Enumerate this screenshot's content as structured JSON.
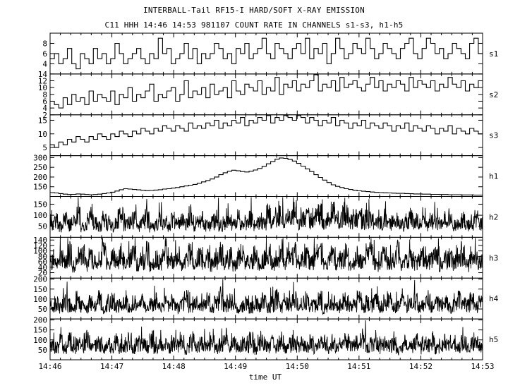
{
  "header": {
    "title": "INTERBALL-Tail RF15-I HARD/SOFT X-RAY EMISSION",
    "subtitle": "C11 HHH 14:46 14:53 981107  COUNT RATE IN CHANNELS s1-s3, h1-h5"
  },
  "chart_data": {
    "type": "line",
    "title": "INTERBALL-Tail RF15-I HARD/SOFT X-RAY EMISSION",
    "subtitle": "C11 HHH 14:46 14:53 981107  COUNT RATE IN CHANNELS s1-s3, h1-h5",
    "xlabel": "time UT",
    "x_ticks": [
      "14:46",
      "14:47",
      "14:48",
      "14:49",
      "14:50",
      "14:51",
      "14:52",
      "14:53"
    ],
    "x_range": [
      "14:46",
      "14:53"
    ],
    "grid": false,
    "panels": [
      {
        "name": "s1",
        "ylim": [
          2,
          10
        ],
        "yticks": [
          4,
          6,
          8
        ],
        "step": true,
        "values": [
          5,
          6,
          4,
          5,
          7,
          4,
          3,
          6,
          5,
          4,
          7,
          5,
          6,
          4,
          5,
          8,
          6,
          4,
          5,
          6,
          7,
          5,
          4,
          6,
          5,
          9,
          6,
          7,
          4,
          5,
          6,
          8,
          5,
          7,
          4,
          6,
          5,
          6,
          8,
          7,
          5,
          6,
          4,
          7,
          6,
          8,
          5,
          6,
          7,
          9,
          6,
          5,
          8,
          7,
          6,
          5,
          7,
          8,
          6,
          9,
          5,
          7,
          6,
          8,
          4,
          6,
          9,
          7,
          5,
          6,
          8,
          7,
          6,
          9,
          7,
          5,
          6,
          8,
          7,
          6,
          5,
          7,
          8,
          9,
          6,
          5,
          7,
          9,
          8,
          6,
          7,
          5,
          6,
          8,
          7,
          6,
          5,
          8,
          9,
          6
        ]
      },
      {
        "name": "s2",
        "ylim": [
          2,
          14
        ],
        "yticks": [
          2,
          4,
          6,
          8,
          10,
          12,
          14
        ],
        "step": true,
        "values": [
          6,
          5,
          4,
          7,
          5,
          8,
          6,
          7,
          5,
          9,
          6,
          8,
          7,
          6,
          9,
          5,
          8,
          7,
          10,
          6,
          8,
          7,
          9,
          11,
          6,
          8,
          7,
          9,
          10,
          6,
          8,
          12,
          7,
          9,
          8,
          10,
          7,
          11,
          8,
          9,
          10,
          7,
          12,
          9,
          8,
          11,
          10,
          9,
          12,
          8,
          10,
          9,
          13,
          8,
          11,
          10,
          12,
          9,
          11,
          10,
          12,
          14,
          9,
          11,
          10,
          12,
          9,
          13,
          10,
          11,
          12,
          10,
          9,
          11,
          13,
          10,
          12,
          9,
          11,
          10,
          12,
          11,
          9,
          13,
          10,
          12,
          11,
          10,
          12,
          9,
          11,
          10,
          13,
          11,
          10,
          12,
          9,
          11,
          10,
          12
        ]
      },
      {
        "name": "s3",
        "ylim": [
          2,
          17
        ],
        "yticks": [
          5,
          10,
          15
        ],
        "step": true,
        "values": [
          6,
          5,
          7,
          6,
          8,
          7,
          9,
          8,
          7,
          9,
          8,
          10,
          9,
          8,
          10,
          9,
          11,
          10,
          9,
          11,
          10,
          12,
          11,
          10,
          12,
          11,
          13,
          12,
          11,
          13,
          12,
          11,
          14,
          12,
          13,
          12,
          14,
          13,
          15,
          12,
          14,
          13,
          15,
          14,
          16,
          13,
          15,
          14,
          16,
          15,
          17,
          14,
          16,
          15,
          17,
          16,
          15,
          17,
          16,
          14,
          16,
          15,
          13,
          15,
          14,
          16,
          13,
          15,
          14,
          12,
          14,
          13,
          15,
          12,
          14,
          13,
          12,
          14,
          13,
          11,
          13,
          12,
          14,
          11,
          13,
          12,
          11,
          13,
          12,
          10,
          12,
          11,
          13,
          10,
          12,
          11,
          10,
          12,
          11,
          10
        ]
      },
      {
        "name": "h1",
        "ylim": [
          100,
          310
        ],
        "yticks": [
          150,
          200,
          250,
          300
        ],
        "step": true,
        "values": [
          120,
          118,
          115,
          112,
          110,
          111,
          113,
          112,
          110,
          109,
          110,
          112,
          115,
          118,
          122,
          128,
          135,
          140,
          138,
          136,
          134,
          132,
          130,
          131,
          133,
          135,
          138,
          140,
          143,
          146,
          150,
          154,
          158,
          162,
          168,
          175,
          182,
          190,
          200,
          212,
          222,
          230,
          235,
          232,
          228,
          226,
          230,
          236,
          244,
          255,
          268,
          280,
          292,
          298,
          296,
          290,
          282,
          270,
          256,
          242,
          228,
          212,
          198,
          184,
          172,
          160,
          152,
          146,
          140,
          136,
          132,
          129,
          127,
          125,
          123,
          121,
          120,
          119,
          118,
          117,
          116,
          116,
          115,
          114,
          113,
          113,
          112,
          112,
          111,
          111,
          110,
          110,
          109,
          109,
          109,
          108,
          108,
          108,
          107,
          107
        ]
      },
      {
        "name": "h2",
        "ylim": [
          0,
          185
        ],
        "yticks": [
          50,
          100,
          150
        ],
        "values": [
          60,
          72,
          48,
          81,
          55,
          67,
          90,
          43,
          58,
          77,
          64,
          52,
          85,
          61,
          47,
          70,
          94,
          56,
          63,
          79,
          50,
          68,
          88,
          45,
          59,
          74,
          66,
          53,
          82,
          60,
          71,
          57,
          97,
          49,
          65,
          78,
          54,
          69,
          91,
          46,
          62,
          75,
          58,
          83,
          51,
          67,
          86,
          55,
          73,
          60,
          108,
          64,
          78,
          99,
          70,
          85,
          112,
          66,
          80,
          95,
          74,
          89,
          104,
          69,
          82,
          120,
          77,
          91,
          100,
          72,
          87,
          94,
          68,
          81,
          76,
          63,
          70,
          88,
          59,
          66,
          79,
          55,
          72,
          84,
          61,
          68,
          90,
          57,
          74,
          65,
          53,
          71,
          86,
          60,
          67,
          78,
          56,
          63,
          82,
          58
        ]
      },
      {
        "name": "h3",
        "ylim": [
          0,
          150
        ],
        "yticks": [
          20,
          40,
          60,
          80,
          100,
          120,
          140
        ],
        "values": [
          62,
          48,
          75,
          55,
          90,
          43,
          68,
          80,
          52,
          71,
          58,
          66,
          95,
          47,
          73,
          60,
          84,
          54,
          69,
          77,
          50,
          64,
          88,
          45,
          70,
          59,
          82,
          53,
          67,
          76,
          49,
          63,
          91,
          56,
          72,
          61,
          79,
          51,
          65,
          86,
          57,
          74,
          48,
          68,
          83,
          55,
          62,
          78,
          50,
          71,
          89,
          58,
          66,
          80,
          53,
          69,
          92,
          47,
          64,
          75,
          56,
          73,
          85,
          52,
          67,
          79,
          60,
          70,
          88,
          49,
          63,
          77,
          55,
          72,
          84,
          51,
          66,
          81,
          58,
          69,
          93,
          46,
          62,
          76,
          54,
          71,
          86,
          59,
          65,
          78,
          50,
          68,
          82,
          57,
          73,
          90,
          48,
          64,
          75,
          61
        ]
      },
      {
        "name": "h4",
        "ylim": [
          0,
          205
        ],
        "yticks": [
          50,
          100,
          150,
          200
        ],
        "values": [
          62,
          75,
          55,
          88,
          68,
          50,
          92,
          70,
          58,
          80,
          66,
          95,
          53,
          74,
          86,
          61,
          70,
          99,
          57,
          78,
          64,
          83,
          52,
          71,
          90,
          60,
          76,
          67,
          85,
          54,
          73,
          96,
          63,
          80,
          58,
          69,
          88,
          55,
          77,
          92,
          65,
          72,
          84,
          51,
          68,
          94,
          60,
          79,
          70,
          87,
          56,
          74,
          98,
          62,
          81,
          67,
          90,
          58,
          76,
          85,
          64,
          71,
          93,
          53,
          69,
          82,
          60,
          78,
          89,
          66,
          73,
          95,
          57,
          80,
          70,
          86,
          61,
          75,
          91,
          55,
          68,
          83,
          63,
          77,
          94,
          59,
          72,
          88,
          65,
          79,
          71,
          84,
          56,
          74,
          96,
          62,
          70,
          85,
          58,
          76
        ]
      },
      {
        "name": "h5",
        "ylim": [
          0,
          205
        ],
        "yticks": [
          50,
          100,
          150,
          200
        ],
        "values": [
          70,
          58,
          85,
          64,
          92,
          55,
          78,
          68,
          98,
          60,
          74,
          86,
          57,
          80,
          66,
          94,
          62,
          77,
          89,
          54,
          72,
          83,
          65,
          96,
          59,
          76,
          88,
          63,
          81,
          70,
          93,
          56,
          75,
          87,
          61,
          79,
          67,
          95,
          58,
          73,
          84,
          64,
          90,
          60,
          78,
          71,
          97,
          55,
          76,
          86,
          63,
          82,
          69,
          92,
          57,
          74,
          88,
          66,
          80,
          62,
          95,
          59,
          77,
          85,
          68,
          91,
          56,
          73,
          89,
          64,
          79,
          70,
          96,
          58,
          75,
          83,
          61,
          87,
          67,
          93,
          55,
          72,
          84,
          63,
          90,
          60,
          78,
          69,
          94,
          57,
          76,
          86,
          65,
          81,
          62,
          89,
          58,
          74,
          85,
          66
        ]
      }
    ]
  }
}
